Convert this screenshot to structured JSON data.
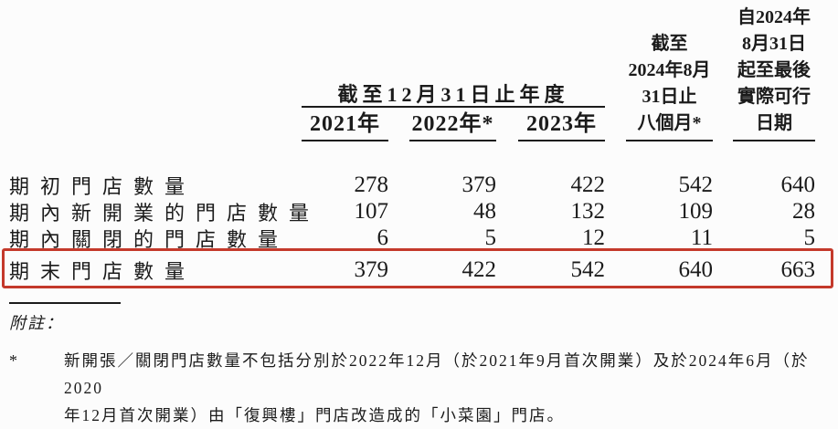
{
  "table": {
    "year_group_header": "截至12月31日止年度",
    "year_headers": [
      "2021年",
      "2022年*",
      "2023年"
    ],
    "col4_header_lines": [
      "截至",
      "2024年8月",
      "31日止",
      "八個月*"
    ],
    "col5_header_lines": [
      "自2024年",
      "8月31日",
      "起至最後",
      "實際可行",
      "日期"
    ],
    "rows": [
      {
        "label": "期初門店數量",
        "values": [
          "278",
          "379",
          "422",
          "542",
          "640"
        ]
      },
      {
        "label": "期內新開業的門店數量",
        "values": [
          "107",
          "48",
          "132",
          "109",
          "28"
        ]
      },
      {
        "label": "期內關閉的門店數量",
        "values": [
          "6",
          "5",
          "12",
          "11",
          "5"
        ]
      },
      {
        "label": "期末門店數量",
        "values": [
          "379",
          "422",
          "542",
          "640",
          "663"
        ]
      }
    ],
    "highlight_color": "#c4392b"
  },
  "notes": {
    "label": "附註：",
    "star_marker": "*",
    "star_lines": [
      "新開張／關閉門店數量不包括分別於2022年12月（於2021年9月首次開業）及於2024年6月（於2020",
      "年12月首次開業）由「復興樓」門店改造成的「小菜園」門店。"
    ]
  }
}
